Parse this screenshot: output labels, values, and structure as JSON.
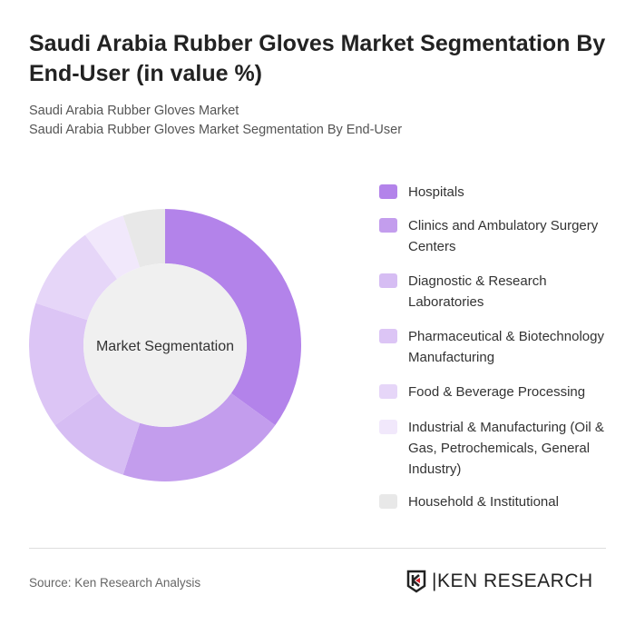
{
  "title": "Saudi Arabia Rubber Gloves Market Segmentation By End-User (in value %)",
  "subtitle1": "Saudi Arabia Rubber Gloves Market",
  "subtitle2": "Saudi Arabia Rubber Gloves Market Segmentation By End-User",
  "source": "Source: Ken Research Analysis",
  "logo_text": "KEN RESEARCH",
  "chart_data": {
    "type": "pie",
    "variant": "donut",
    "center_label": "Market Segmentation",
    "categories": [
      "Hospitals",
      "Clinics and Ambulatory Surgery Centers",
      "Diagnostic & Research Laboratories",
      "Pharmaceutical & Biotechnology Manufacturing",
      "Food & Beverage Processing",
      "Industrial & Manufacturing (Oil & Gas, Petrochemicals, General Industry)",
      "Household & Institutional"
    ],
    "values": [
      35,
      20,
      10,
      15,
      10,
      5,
      5
    ],
    "colors": [
      "#b383ea",
      "#c39ded",
      "#d6bdf3",
      "#dcc5f5",
      "#e6d6f8",
      "#f1e8fb",
      "#e8e8e8"
    ],
    "legend_position": "right"
  }
}
